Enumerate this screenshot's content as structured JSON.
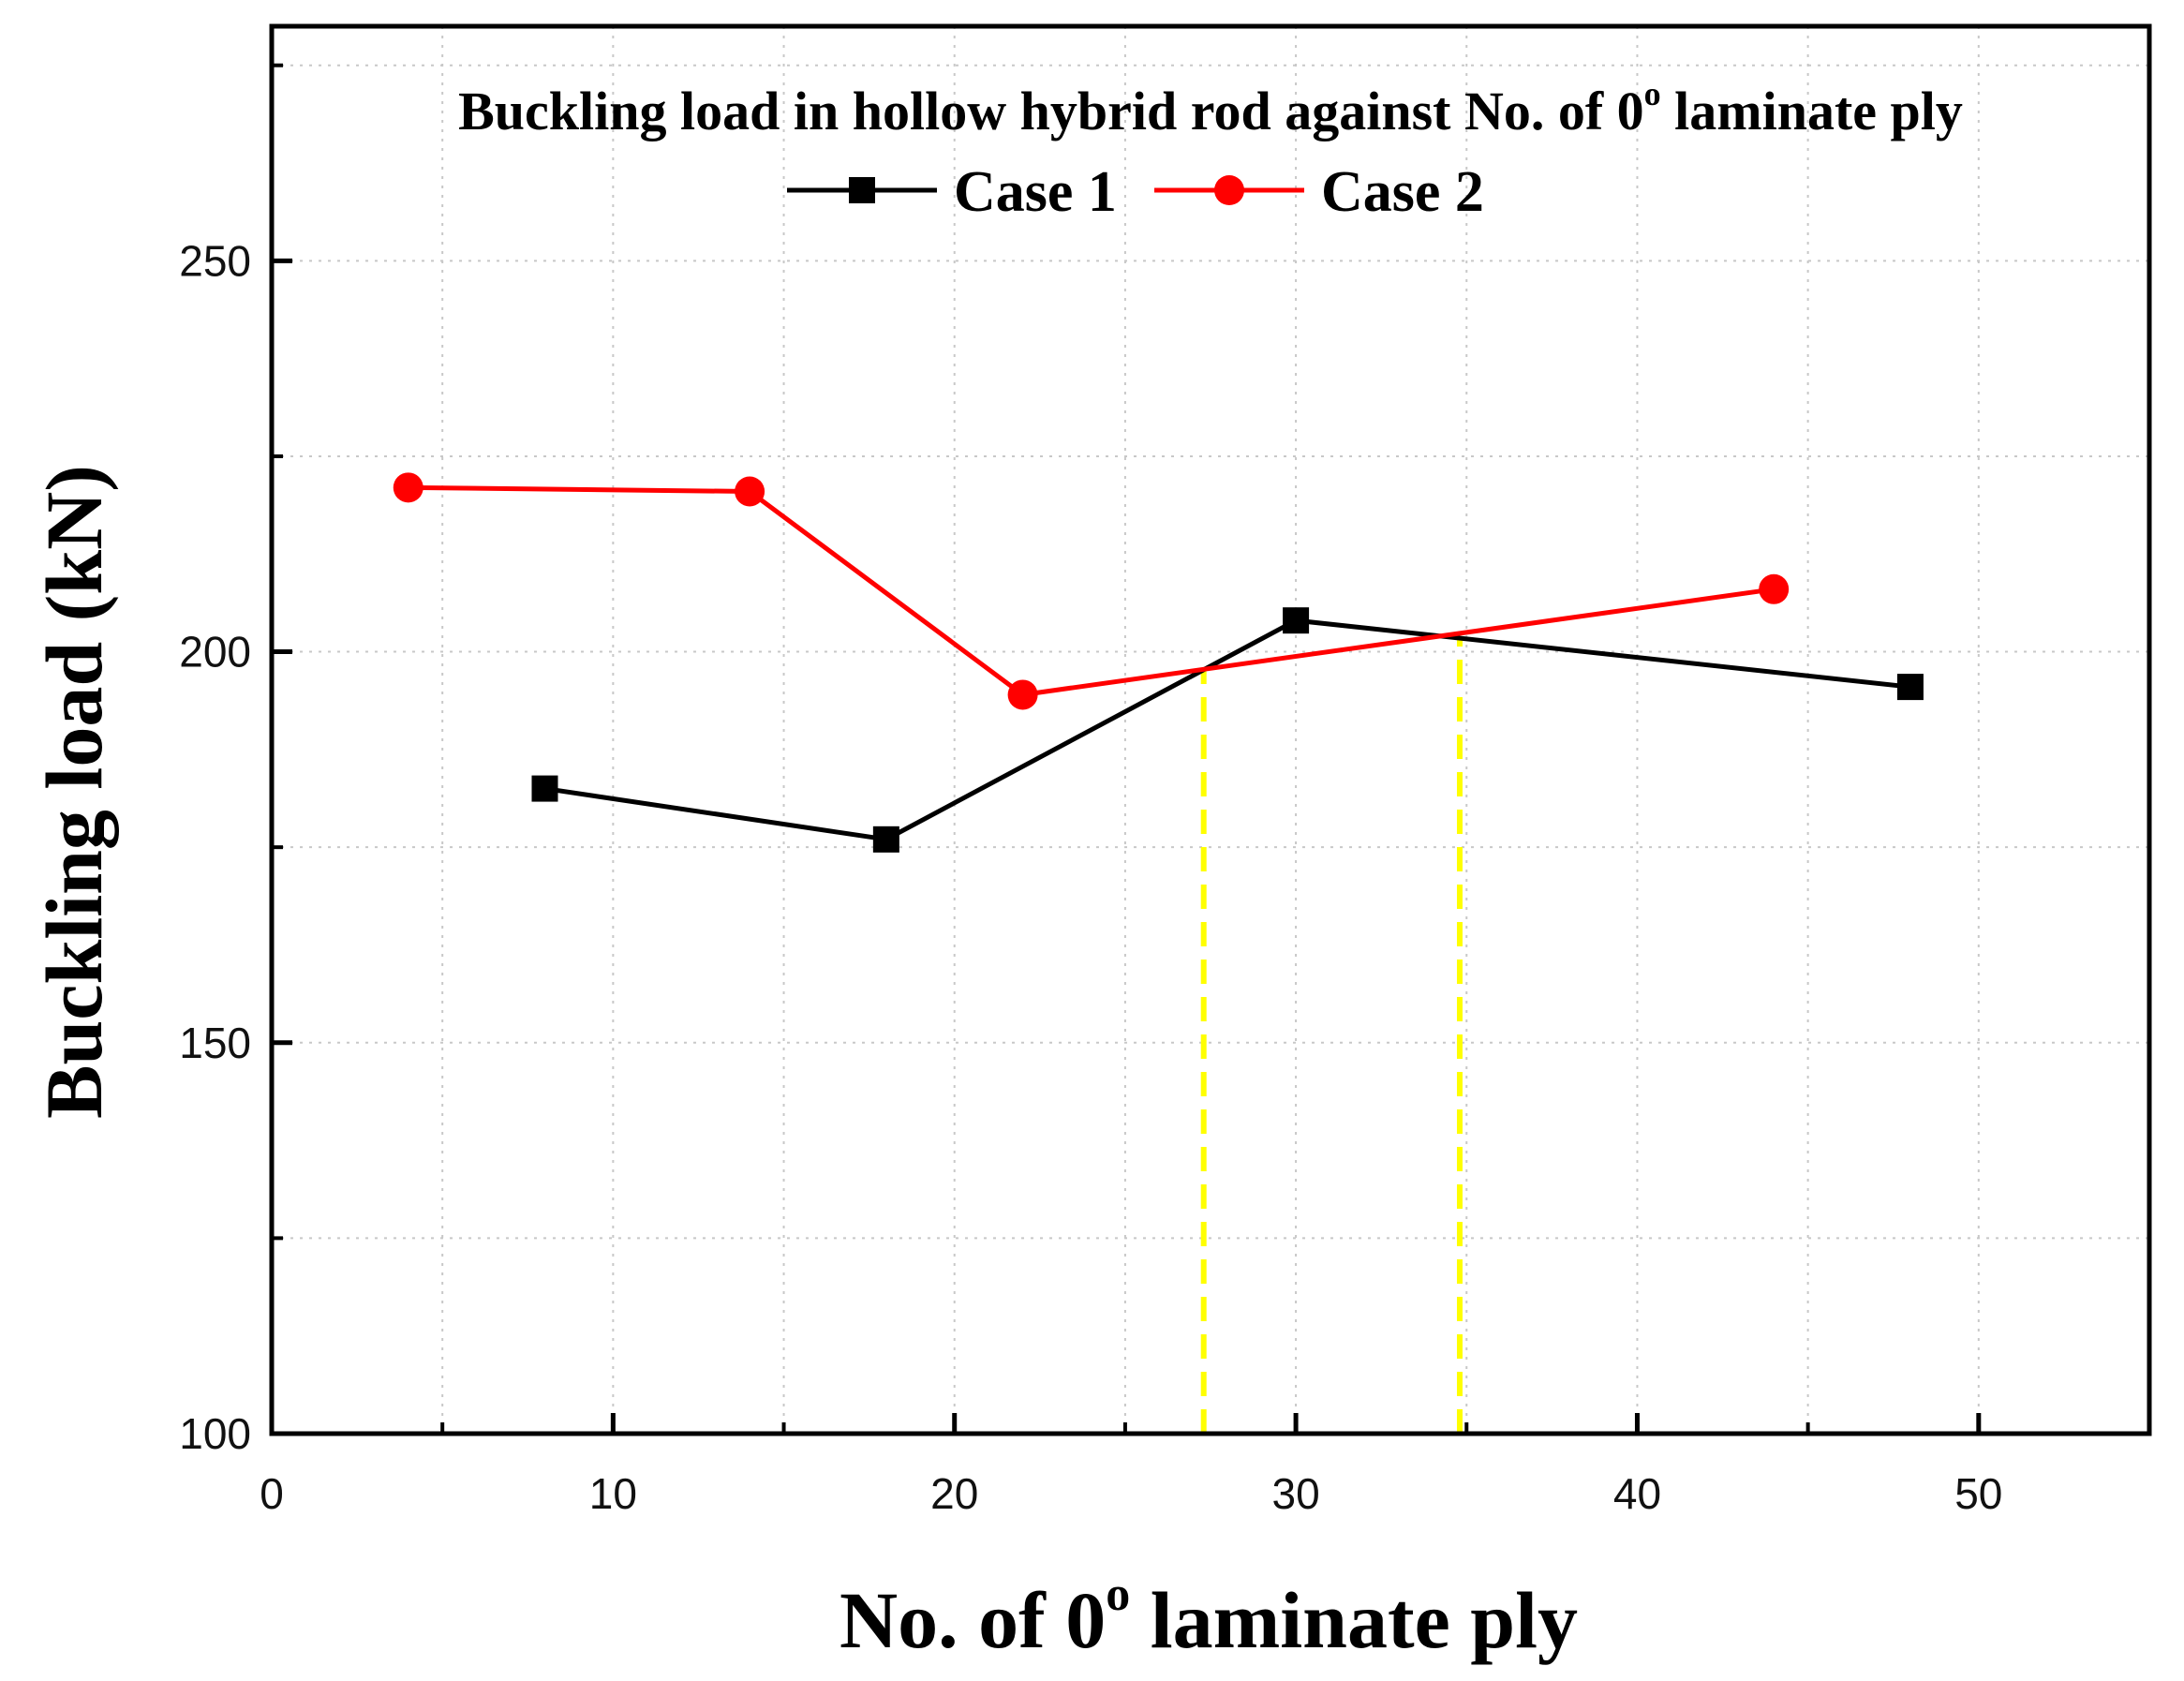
{
  "chart_data": {
    "type": "line",
    "title": "Buckling load in hollow hybrid rod against No. of 0° laminate ply",
    "title_parts": [
      "Buckling load in hollow hybrid rod against No. of 0",
      "o",
      " laminate ply"
    ],
    "xlabel": "No. of 0° laminate ply",
    "xlabel_parts": [
      "No. of 0",
      "o",
      " laminate ply"
    ],
    "ylabel": "Buckling load (kN)",
    "xlim": [
      0,
      55
    ],
    "ylim": [
      100,
      280
    ],
    "x_ticks": [
      0,
      10,
      20,
      30,
      40,
      50
    ],
    "y_ticks": [
      100,
      150,
      200,
      250
    ],
    "x_minor_ticks": [
      5,
      15,
      25,
      35,
      45
    ],
    "y_minor_ticks": [
      125,
      175,
      225,
      275
    ],
    "grid": true,
    "legend_position": "top-center",
    "series": [
      {
        "name": "Case 1",
        "color": "#000000",
        "marker": "square",
        "x": [
          8,
          18,
          30,
          48
        ],
        "y": [
          182.5,
          176,
          204,
          195.5
        ]
      },
      {
        "name": "Case 2",
        "color": "#ff0000",
        "marker": "circle",
        "x": [
          4,
          14,
          22,
          44
        ],
        "y": [
          221,
          220.5,
          194.5,
          208
        ]
      }
    ],
    "reference_lines": [
      {
        "x": 27.3,
        "y_from": 100,
        "y_to": 197.5,
        "color": "#ffff00",
        "style": "dashed"
      },
      {
        "x": 34.8,
        "y_from": 100,
        "y_to": 202,
        "color": "#ffff00",
        "style": "dashed"
      }
    ]
  }
}
